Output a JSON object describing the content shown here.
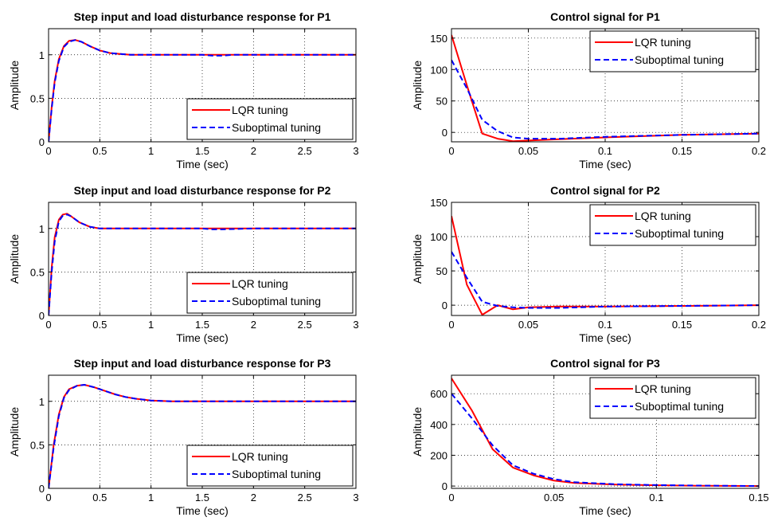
{
  "chart_data": [
    {
      "type": "line",
      "title": "Step input and load disturbance response for P1",
      "xlabel": "Time (sec)",
      "ylabel": "Amplitude",
      "xlim": [
        0,
        3
      ],
      "ylim": [
        0,
        1.3
      ],
      "xticks": [
        0,
        0.5,
        1,
        1.5,
        2,
        2.5,
        3
      ],
      "xticklabels": [
        "0",
        "0.5",
        "1",
        "1.5",
        "2",
        "2.5",
        "3"
      ],
      "yticks": [
        0,
        0.5,
        1
      ],
      "yticklabels": [
        "0",
        "0.5",
        "1"
      ],
      "grid": true,
      "legend_position": "bottom-right",
      "series": [
        {
          "name": "LQR tuning",
          "color": "#ff0000",
          "dash": "solid",
          "x": [
            0,
            0.03,
            0.06,
            0.1,
            0.15,
            0.2,
            0.26,
            0.32,
            0.4,
            0.5,
            0.6,
            0.7,
            0.8,
            0.9,
            1.0,
            1.2,
            1.5,
            1.6,
            1.7,
            1.8,
            2.0,
            3.0
          ],
          "y": [
            0,
            0.4,
            0.7,
            0.95,
            1.1,
            1.16,
            1.17,
            1.15,
            1.1,
            1.05,
            1.02,
            1.01,
            1.0,
            1.0,
            1.0,
            1.0,
            1.0,
            1.0,
            1.0,
            1.0,
            1.0,
            1.0
          ]
        },
        {
          "name": "Suboptimal tuning",
          "color": "#0000ff",
          "dash": "dashed",
          "x": [
            0,
            0.03,
            0.06,
            0.1,
            0.15,
            0.2,
            0.26,
            0.32,
            0.4,
            0.5,
            0.6,
            0.7,
            0.8,
            0.9,
            1.0,
            1.2,
            1.5,
            1.6,
            1.7,
            1.8,
            2.0,
            3.0
          ],
          "y": [
            0,
            0.38,
            0.68,
            0.93,
            1.09,
            1.15,
            1.17,
            1.15,
            1.1,
            1.05,
            1.02,
            1.01,
            1.0,
            1.0,
            1.0,
            1.0,
            1.0,
            0.99,
            0.99,
            1.0,
            1.0,
            1.0
          ]
        }
      ]
    },
    {
      "type": "line",
      "title": "Control signal for P1",
      "xlabel": "Time (sec)",
      "ylabel": "Amplitude",
      "xlim": [
        0,
        0.2
      ],
      "ylim": [
        -15,
        165
      ],
      "xticks": [
        0,
        0.05,
        0.1,
        0.15,
        0.2
      ],
      "xticklabels": [
        "0",
        "0.05",
        "0.1",
        "0.15",
        "0.2"
      ],
      "yticks": [
        0,
        50,
        100,
        150
      ],
      "yticklabels": [
        "0",
        "50",
        "100",
        "150"
      ],
      "grid": true,
      "legend_position": "top-right",
      "series": [
        {
          "name": "LQR tuning",
          "color": "#ff0000",
          "dash": "solid",
          "x": [
            0,
            0.01,
            0.02,
            0.03,
            0.04,
            0.05,
            0.07,
            0.1,
            0.15,
            0.2
          ],
          "y": [
            155,
            75,
            -2,
            -10,
            -14,
            -13,
            -11,
            -8,
            -4,
            -2
          ]
        },
        {
          "name": "Suboptimal tuning",
          "color": "#0000ff",
          "dash": "dashed",
          "x": [
            0,
            0.01,
            0.02,
            0.03,
            0.04,
            0.05,
            0.07,
            0.1,
            0.15,
            0.2
          ],
          "y": [
            115,
            70,
            20,
            2,
            -8,
            -10,
            -10,
            -7,
            -4,
            -2
          ]
        }
      ]
    },
    {
      "type": "line",
      "title": "Step input and load disturbance response for P2",
      "xlabel": "Time (sec)",
      "ylabel": "Amplitude",
      "xlim": [
        0,
        3
      ],
      "ylim": [
        0,
        1.3
      ],
      "xticks": [
        0,
        0.5,
        1,
        1.5,
        2,
        2.5,
        3
      ],
      "xticklabels": [
        "0",
        "0.5",
        "1",
        "1.5",
        "2",
        "2.5",
        "3"
      ],
      "yticks": [
        0,
        0.5,
        1
      ],
      "yticklabels": [
        "0",
        "0.5",
        "1"
      ],
      "grid": true,
      "legend_position": "bottom-right",
      "series": [
        {
          "name": "LQR tuning",
          "color": "#ff0000",
          "dash": "solid",
          "x": [
            0,
            0.03,
            0.06,
            0.1,
            0.14,
            0.18,
            0.22,
            0.3,
            0.4,
            0.5,
            0.6,
            0.8,
            1.0,
            1.5,
            1.6,
            1.7,
            2.0,
            3.0
          ],
          "y": [
            0,
            0.55,
            0.9,
            1.1,
            1.16,
            1.17,
            1.14,
            1.07,
            1.02,
            1.0,
            1.0,
            1.0,
            1.0,
            1.0,
            1.0,
            1.0,
            1.0,
            1.0
          ]
        },
        {
          "name": "Suboptimal tuning",
          "color": "#0000ff",
          "dash": "dashed",
          "x": [
            0,
            0.03,
            0.06,
            0.1,
            0.14,
            0.18,
            0.22,
            0.3,
            0.4,
            0.5,
            0.6,
            0.8,
            1.0,
            1.5,
            1.6,
            1.7,
            2.0,
            3.0
          ],
          "y": [
            0,
            0.5,
            0.85,
            1.08,
            1.15,
            1.16,
            1.14,
            1.07,
            1.02,
            1.0,
            1.0,
            1.0,
            1.0,
            1.0,
            0.99,
            0.99,
            1.0,
            1.0
          ]
        }
      ]
    },
    {
      "type": "line",
      "title": "Control signal for P2",
      "xlabel": "Time (sec)",
      "ylabel": "Amplitude",
      "xlim": [
        0,
        0.2
      ],
      "ylim": [
        -15,
        150
      ],
      "xticks": [
        0,
        0.05,
        0.1,
        0.15,
        0.2
      ],
      "xticklabels": [
        "0",
        "0.05",
        "0.1",
        "0.15",
        "0.2"
      ],
      "yticks": [
        0,
        50,
        100,
        150
      ],
      "yticklabels": [
        "0",
        "50",
        "100",
        "150"
      ],
      "grid": true,
      "legend_position": "top-right",
      "series": [
        {
          "name": "LQR tuning",
          "color": "#ff0000",
          "dash": "solid",
          "x": [
            0,
            0.01,
            0.02,
            0.03,
            0.04,
            0.05,
            0.07,
            0.1,
            0.15,
            0.2
          ],
          "y": [
            130,
            30,
            -14,
            0,
            -6,
            -3,
            -2,
            -2,
            -1,
            0
          ]
        },
        {
          "name": "Suboptimal tuning",
          "color": "#0000ff",
          "dash": "dashed",
          "x": [
            0,
            0.01,
            0.02,
            0.03,
            0.04,
            0.05,
            0.07,
            0.1,
            0.15,
            0.2
          ],
          "y": [
            78,
            40,
            5,
            -1,
            -3,
            -4,
            -4,
            -2,
            -1,
            0
          ]
        }
      ]
    },
    {
      "type": "line",
      "title": "Step input and load disturbance response for P3",
      "xlabel": "Time (sec)",
      "ylabel": "Amplitude",
      "xlim": [
        0,
        3
      ],
      "ylim": [
        0,
        1.3
      ],
      "xticks": [
        0,
        0.5,
        1,
        1.5,
        2,
        2.5,
        3
      ],
      "xticklabels": [
        "0",
        "0.5",
        "1",
        "1.5",
        "2",
        "2.5",
        "3"
      ],
      "yticks": [
        0,
        0.5,
        1
      ],
      "yticklabels": [
        "0",
        "0.5",
        "1"
      ],
      "grid": true,
      "legend_position": "bottom-right",
      "series": [
        {
          "name": "LQR tuning",
          "color": "#ff0000",
          "dash": "solid",
          "x": [
            0,
            0.05,
            0.1,
            0.15,
            0.2,
            0.28,
            0.35,
            0.45,
            0.55,
            0.65,
            0.75,
            0.85,
            1.0,
            1.2,
            1.5,
            2.0,
            3.0
          ],
          "y": [
            0,
            0.5,
            0.85,
            1.05,
            1.14,
            1.18,
            1.19,
            1.16,
            1.12,
            1.08,
            1.05,
            1.03,
            1.01,
            1.0,
            1.0,
            1.0,
            1.0
          ]
        },
        {
          "name": "Suboptimal tuning",
          "color": "#0000ff",
          "dash": "dashed",
          "x": [
            0,
            0.05,
            0.1,
            0.15,
            0.2,
            0.28,
            0.35,
            0.45,
            0.55,
            0.65,
            0.75,
            0.85,
            1.0,
            1.2,
            1.5,
            2.0,
            3.0
          ],
          "y": [
            0,
            0.47,
            0.83,
            1.04,
            1.13,
            1.18,
            1.19,
            1.16,
            1.12,
            1.08,
            1.05,
            1.03,
            1.01,
            1.0,
            1.0,
            1.0,
            1.0
          ]
        }
      ]
    },
    {
      "type": "line",
      "title": "Control signal for P3",
      "xlabel": "Time (sec)",
      "ylabel": "Amplitude",
      "xlim": [
        0,
        0.15
      ],
      "ylim": [
        -15,
        720
      ],
      "xticks": [
        0,
        0.05,
        0.1,
        0.15
      ],
      "xticklabels": [
        "0",
        "0.05",
        "0.1",
        "0.15"
      ],
      "yticks": [
        0,
        200,
        400,
        600
      ],
      "yticklabels": [
        "0",
        "200",
        "400",
        "600"
      ],
      "grid": true,
      "legend_position": "top-right",
      "series": [
        {
          "name": "LQR tuning",
          "color": "#ff0000",
          "dash": "solid",
          "x": [
            0,
            0.01,
            0.02,
            0.03,
            0.04,
            0.05,
            0.06,
            0.08,
            0.1,
            0.12,
            0.15
          ],
          "y": [
            700,
            490,
            240,
            120,
            70,
            35,
            20,
            10,
            5,
            2,
            0
          ]
        },
        {
          "name": "Suboptimal tuning",
          "color": "#0000ff",
          "dash": "dashed",
          "x": [
            0,
            0.01,
            0.02,
            0.03,
            0.04,
            0.05,
            0.06,
            0.08,
            0.1,
            0.12,
            0.15
          ],
          "y": [
            600,
            440,
            265,
            135,
            80,
            45,
            25,
            12,
            6,
            3,
            0
          ]
        }
      ]
    }
  ]
}
